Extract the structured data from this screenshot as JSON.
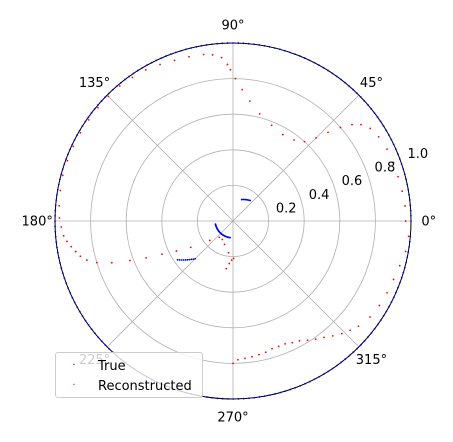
{
  "chart_data": {
    "type": "scatter",
    "projection": "polar",
    "title": "",
    "rlim": [
      0,
      1.0
    ],
    "r_ticks": [
      "0.2",
      "0.4",
      "0.6",
      "0.8",
      "1.0"
    ],
    "r_tick_values": [
      0.2,
      0.4,
      0.6,
      0.8,
      1.0
    ],
    "theta_ticks": [
      "0°",
      "45°",
      "90°",
      "135°",
      "180°",
      "225°",
      "270°",
      "315°"
    ],
    "theta_tick_values": [
      0,
      45,
      90,
      135,
      180,
      225,
      270,
      315
    ],
    "grid": true,
    "legend_position": "lower left",
    "series": [
      {
        "name": "True",
        "color": "#0000ff",
        "segments": [
          {
            "theta_deg": [
              0,
              355
            ],
            "r": [
              1.0,
              1.0
            ],
            "n": 210
          },
          {
            "theta_deg": [
              68,
              50
            ],
            "r": [
              0.13,
              0.15
            ],
            "n": 8
          },
          {
            "theta_deg": [
              190,
              260
            ],
            "r": [
              0.1,
              0.095
            ],
            "n": 26
          },
          {
            "theta_deg": [
              215,
              225
            ],
            "r": [
              0.38,
              0.3
            ],
            "n": 10
          }
        ]
      },
      {
        "name": "Reconstructed",
        "color": "#ff0000",
        "points": [
          [
            355,
            0.99
          ],
          [
            350,
            0.985
          ],
          [
            345,
            0.97
          ],
          [
            340,
            0.96
          ],
          [
            335,
            0.955
          ],
          [
            330,
            0.95
          ],
          [
            325,
            0.94
          ],
          [
            320,
            0.92
          ],
          [
            317,
            0.9
          ],
          [
            314,
            0.88
          ],
          [
            311,
            0.855
          ],
          [
            308,
            0.83
          ],
          [
            305,
            0.81
          ],
          [
            302,
            0.79
          ],
          [
            299,
            0.77
          ],
          [
            296,
            0.76
          ],
          [
            293,
            0.75
          ],
          [
            290,
            0.75
          ],
          [
            287,
            0.75
          ],
          [
            284,
            0.76
          ],
          [
            281,
            0.765
          ],
          [
            278,
            0.77
          ],
          [
            275,
            0.775
          ],
          [
            272,
            0.78
          ],
          [
            270,
            0.8
          ],
          [
            262,
            0.27
          ],
          [
            265,
            0.24
          ],
          [
            268,
            0.22
          ],
          [
            271,
            0.21
          ],
          [
            262,
            0.18
          ],
          [
            250,
            0.14
          ],
          [
            240,
            0.12
          ],
          [
            230,
            0.12
          ],
          [
            220,
            0.17
          ],
          [
            212,
            0.28
          ],
          [
            208,
            0.36
          ],
          [
            205,
            0.44
          ],
          [
            203,
            0.53
          ],
          [
            201,
            0.62
          ],
          [
            199,
            0.72
          ],
          [
            197,
            0.8
          ],
          [
            195,
            0.85
          ],
          [
            193,
            0.88
          ],
          [
            191,
            0.9
          ],
          [
            189,
            0.92
          ],
          [
            187,
            0.94
          ],
          [
            185,
            0.955
          ],
          [
            182,
            0.965
          ],
          [
            179,
            0.975
          ],
          [
            175,
            0.98
          ],
          [
            170,
            0.985
          ],
          [
            165,
            0.99
          ],
          [
            160,
            0.99
          ],
          [
            155,
            0.99
          ],
          [
            150,
            0.99
          ],
          [
            145,
            0.99
          ],
          [
            140,
            0.99
          ],
          [
            135,
            0.99
          ],
          [
            130,
            0.99
          ],
          [
            125,
            0.985
          ],
          [
            120,
            0.98
          ],
          [
            115,
            0.97
          ],
          [
            110,
            0.96
          ],
          [
            105,
            0.955
          ],
          [
            100,
            0.95
          ],
          [
            97,
            0.94
          ],
          [
            94,
            0.92
          ],
          [
            92,
            0.88
          ],
          [
            91,
            0.85
          ],
          [
            89,
            0.8
          ],
          [
            86,
            0.74
          ],
          [
            82,
            0.68
          ],
          [
            76,
            0.62
          ],
          [
            68,
            0.58
          ],
          [
            60,
            0.56
          ],
          [
            53,
            0.57
          ],
          [
            48,
            0.6
          ],
          [
            45,
            0.66
          ],
          [
            43,
            0.73
          ],
          [
            41,
            0.8
          ],
          [
            39,
            0.86
          ],
          [
            37,
            0.9
          ],
          [
            34,
            0.93
          ],
          [
            30,
            0.945
          ],
          [
            25,
            0.955
          ],
          [
            20,
            0.96
          ],
          [
            15,
            0.96
          ],
          [
            10,
            0.965
          ],
          [
            5,
            0.97
          ],
          [
            0,
            0.97
          ]
        ]
      }
    ]
  },
  "legend": {
    "items": [
      {
        "label": "True",
        "color": "#0000ff"
      },
      {
        "label": "Reconstructed",
        "color": "#ff0000"
      }
    ]
  }
}
